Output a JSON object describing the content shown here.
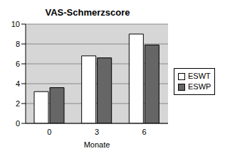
{
  "chart_data": {
    "type": "bar",
    "title": "VAS-Schmerzscore",
    "x_label": "Monate",
    "categories": [
      "0",
      "3",
      "6"
    ],
    "series": [
      {
        "name": "ESWT",
        "color": "#ffffff",
        "values": [
          3.2,
          6.8,
          9.0
        ]
      },
      {
        "name": "ESWP",
        "color": "#666666",
        "values": [
          3.6,
          6.6,
          7.9
        ]
      }
    ],
    "ylim": [
      0,
      10
    ],
    "yticks": [
      0,
      2,
      4,
      6,
      8,
      10
    ],
    "grid": true,
    "legend": "right"
  }
}
